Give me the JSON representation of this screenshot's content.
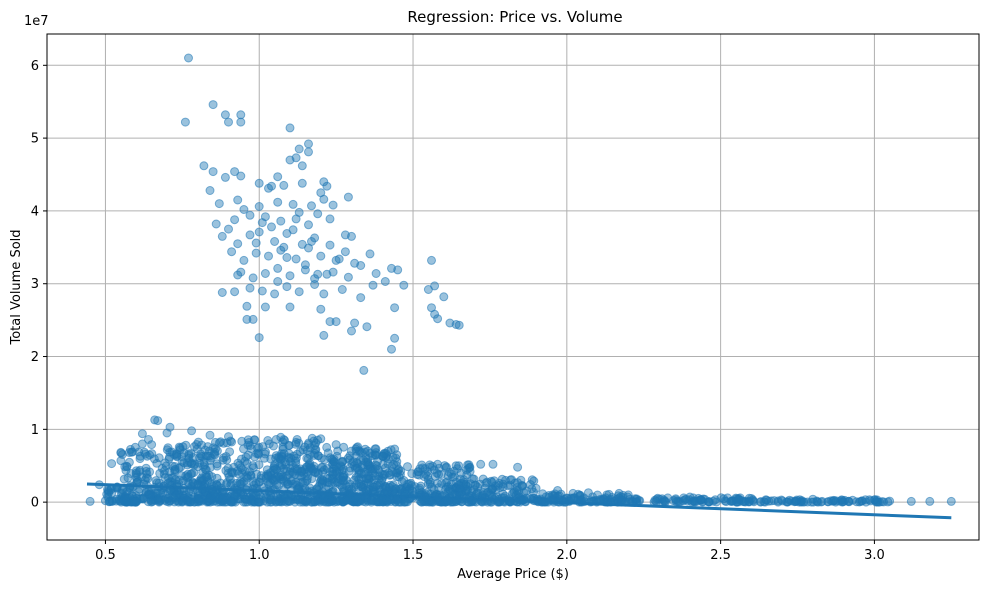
{
  "chart_data": {
    "type": "scatter",
    "title": "Regression: Price vs. Volume",
    "xlabel": "Average Price ($)",
    "ylabel": "Total Volume Sold",
    "y_offset_label": "1e7",
    "xlim": [
      0.31,
      3.34
    ],
    "ylim": [
      -5200000,
      64300000
    ],
    "x_ticks": [
      0.5,
      1.0,
      1.5,
      2.0,
      2.5,
      3.0
    ],
    "x_tick_labels": [
      "0.5",
      "1.0",
      "1.5",
      "2.0",
      "2.5",
      "3.0"
    ],
    "y_ticks": [
      0,
      10000000,
      20000000,
      30000000,
      40000000,
      50000000,
      60000000
    ],
    "y_tick_labels": [
      "0",
      "1",
      "2",
      "3",
      "4",
      "5",
      "6"
    ],
    "grid": true,
    "marker_color": "#1f77b4",
    "marker_alpha": 0.45,
    "regression_color": "#1f77b4",
    "regression_line": {
      "x": [
        0.44,
        3.25
      ],
      "y": [
        2500000,
        -2150000
      ]
    },
    "series": [
      {
        "points": [
          [
            0.77,
            61000000
          ],
          [
            0.76,
            52200000
          ],
          [
            0.85,
            54600000
          ],
          [
            0.89,
            53200000
          ],
          [
            0.94,
            53200000
          ],
          [
            0.9,
            52200000
          ],
          [
            0.94,
            52200000
          ],
          [
            1.1,
            51400000
          ],
          [
            1.16,
            49200000
          ],
          [
            1.16,
            48100000
          ],
          [
            1.13,
            48500000
          ],
          [
            1.12,
            47300000
          ],
          [
            1.1,
            47000000
          ],
          [
            1.14,
            46200000
          ],
          [
            0.82,
            46200000
          ],
          [
            0.85,
            45400000
          ],
          [
            0.92,
            45400000
          ],
          [
            0.94,
            44800000
          ],
          [
            0.89,
            44600000
          ],
          [
            1.06,
            44700000
          ],
          [
            1.08,
            43500000
          ],
          [
            0.84,
            42800000
          ],
          [
            1.0,
            43800000
          ],
          [
            1.03,
            43100000
          ],
          [
            1.04,
            43400000
          ],
          [
            1.14,
            43800000
          ],
          [
            1.21,
            44000000
          ],
          [
            1.22,
            43400000
          ],
          [
            0.87,
            41000000
          ],
          [
            0.93,
            41500000
          ],
          [
            0.95,
            40200000
          ],
          [
            1.0,
            40600000
          ],
          [
            1.06,
            41200000
          ],
          [
            1.11,
            40900000
          ],
          [
            1.17,
            40700000
          ],
          [
            1.24,
            40800000
          ],
          [
            1.29,
            41900000
          ],
          [
            1.2,
            42500000
          ],
          [
            1.21,
            41600000
          ],
          [
            0.86,
            38200000
          ],
          [
            0.9,
            37500000
          ],
          [
            0.92,
            38800000
          ],
          [
            0.97,
            39400000
          ],
          [
            1.02,
            39200000
          ],
          [
            1.07,
            38600000
          ],
          [
            1.12,
            38900000
          ],
          [
            1.16,
            38100000
          ],
          [
            1.19,
            39600000
          ],
          [
            1.23,
            38900000
          ],
          [
            0.88,
            36500000
          ],
          [
            0.93,
            35500000
          ],
          [
            0.97,
            36700000
          ],
          [
            1.0,
            37100000
          ],
          [
            1.05,
            35800000
          ],
          [
            1.09,
            36900000
          ],
          [
            1.14,
            35400000
          ],
          [
            1.18,
            36300000
          ],
          [
            1.23,
            35300000
          ],
          [
            1.28,
            36700000
          ],
          [
            1.3,
            36500000
          ],
          [
            0.91,
            34400000
          ],
          [
            0.95,
            33200000
          ],
          [
            0.99,
            34200000
          ],
          [
            1.03,
            33800000
          ],
          [
            1.07,
            34600000
          ],
          [
            1.12,
            33400000
          ],
          [
            1.16,
            34900000
          ],
          [
            1.2,
            33800000
          ],
          [
            1.25,
            33200000
          ],
          [
            1.31,
            32800000
          ],
          [
            1.36,
            34100000
          ],
          [
            0.94,
            31600000
          ],
          [
            0.98,
            30800000
          ],
          [
            1.02,
            31400000
          ],
          [
            1.06,
            32100000
          ],
          [
            1.1,
            31100000
          ],
          [
            1.15,
            31900000
          ],
          [
            1.19,
            31300000
          ],
          [
            1.24,
            31600000
          ],
          [
            1.29,
            30900000
          ],
          [
            1.33,
            32500000
          ],
          [
            1.38,
            31400000
          ],
          [
            1.43,
            32100000
          ],
          [
            1.45,
            31900000
          ],
          [
            0.92,
            28900000
          ],
          [
            0.97,
            29400000
          ],
          [
            1.01,
            29000000
          ],
          [
            1.05,
            28600000
          ],
          [
            1.09,
            29600000
          ],
          [
            1.13,
            28900000
          ],
          [
            1.18,
            29900000
          ],
          [
            1.21,
            28600000
          ],
          [
            1.27,
            29200000
          ],
          [
            1.33,
            28100000
          ],
          [
            1.37,
            29800000
          ],
          [
            1.41,
            30300000
          ],
          [
            1.47,
            29800000
          ],
          [
            1.55,
            29200000
          ],
          [
            1.56,
            33200000
          ],
          [
            1.57,
            29700000
          ],
          [
            1.6,
            28200000
          ],
          [
            0.88,
            28800000
          ],
          [
            0.96,
            26900000
          ],
          [
            1.02,
            26800000
          ],
          [
            1.1,
            26800000
          ],
          [
            1.2,
            26500000
          ],
          [
            1.31,
            24600000
          ],
          [
            1.35,
            24100000
          ],
          [
            1.23,
            24800000
          ],
          [
            1.25,
            24800000
          ],
          [
            1.44,
            26700000
          ],
          [
            1.56,
            26700000
          ],
          [
            1.57,
            25800000
          ],
          [
            1.58,
            25200000
          ],
          [
            1.62,
            24600000
          ],
          [
            1.64,
            24400000
          ],
          [
            1.65,
            24300000
          ],
          [
            0.96,
            25100000
          ],
          [
            0.98,
            25100000
          ],
          [
            1.0,
            22600000
          ],
          [
            1.21,
            22900000
          ],
          [
            1.3,
            23500000
          ],
          [
            1.44,
            22500000
          ],
          [
            1.43,
            21000000
          ],
          [
            1.34,
            18100000
          ],
          [
            0.93,
            31200000
          ],
          [
            1.04,
            37800000
          ],
          [
            1.09,
            33600000
          ],
          [
            1.18,
            30700000
          ],
          [
            1.26,
            33400000
          ],
          [
            1.08,
            35000000
          ],
          [
            1.13,
            39800000
          ],
          [
            0.99,
            35600000
          ],
          [
            1.06,
            30300000
          ],
          [
            1.17,
            35800000
          ],
          [
            1.22,
            31300000
          ],
          [
            1.28,
            34400000
          ],
          [
            1.01,
            38400000
          ],
          [
            1.11,
            37400000
          ],
          [
            1.15,
            32600000
          ]
        ]
      },
      {
        "points": [
          [
            0.66,
            11300000
          ],
          [
            0.67,
            11200000
          ],
          [
            0.71,
            10300000
          ],
          [
            0.78,
            9800000
          ],
          [
            0.7,
            9500000
          ],
          [
            0.62,
            9400000
          ],
          [
            0.64,
            8600000
          ],
          [
            0.84,
            9200000
          ],
          [
            0.9,
            9000000
          ],
          [
            1.07,
            8900000
          ],
          [
            1.08,
            8600000
          ],
          [
            0.62,
            8000000
          ],
          [
            0.65,
            7900000
          ],
          [
            0.63,
            6600000
          ],
          [
            0.61,
            4200000
          ],
          [
            0.6,
            4000000
          ],
          [
            0.57,
            4900000
          ],
          [
            0.52,
            5300000
          ],
          [
            1.44,
            7300000
          ],
          [
            1.32,
            7600000
          ],
          [
            1.58,
            5200000
          ],
          [
            1.64,
            5000000
          ],
          [
            1.72,
            5200000
          ],
          [
            1.76,
            5200000
          ],
          [
            1.84,
            4800000
          ],
          [
            1.82,
            3100000
          ],
          [
            1.9,
            1900000
          ],
          [
            1.97,
            1600000
          ],
          [
            2.02,
            1200000
          ],
          [
            2.07,
            1300000
          ],
          [
            2.13,
            1000000
          ],
          [
            2.17,
            1200000
          ],
          [
            2.2,
            1000000
          ],
          [
            2.4,
            700000
          ],
          [
            2.6,
            500000
          ],
          [
            2.8,
            400000
          ],
          [
            3.0,
            300000
          ],
          [
            3.12,
            100000
          ],
          [
            3.18,
            100000
          ],
          [
            3.25,
            100000
          ],
          [
            0.45,
            100000
          ],
          [
            0.5,
            200000
          ],
          [
            0.48,
            2400000
          ],
          [
            0.52,
            1200000
          ],
          [
            1.12,
            8200000
          ],
          [
            1.18,
            7800000
          ],
          [
            1.25,
            7900000
          ],
          [
            1.38,
            6800000
          ]
        ]
      }
    ]
  }
}
